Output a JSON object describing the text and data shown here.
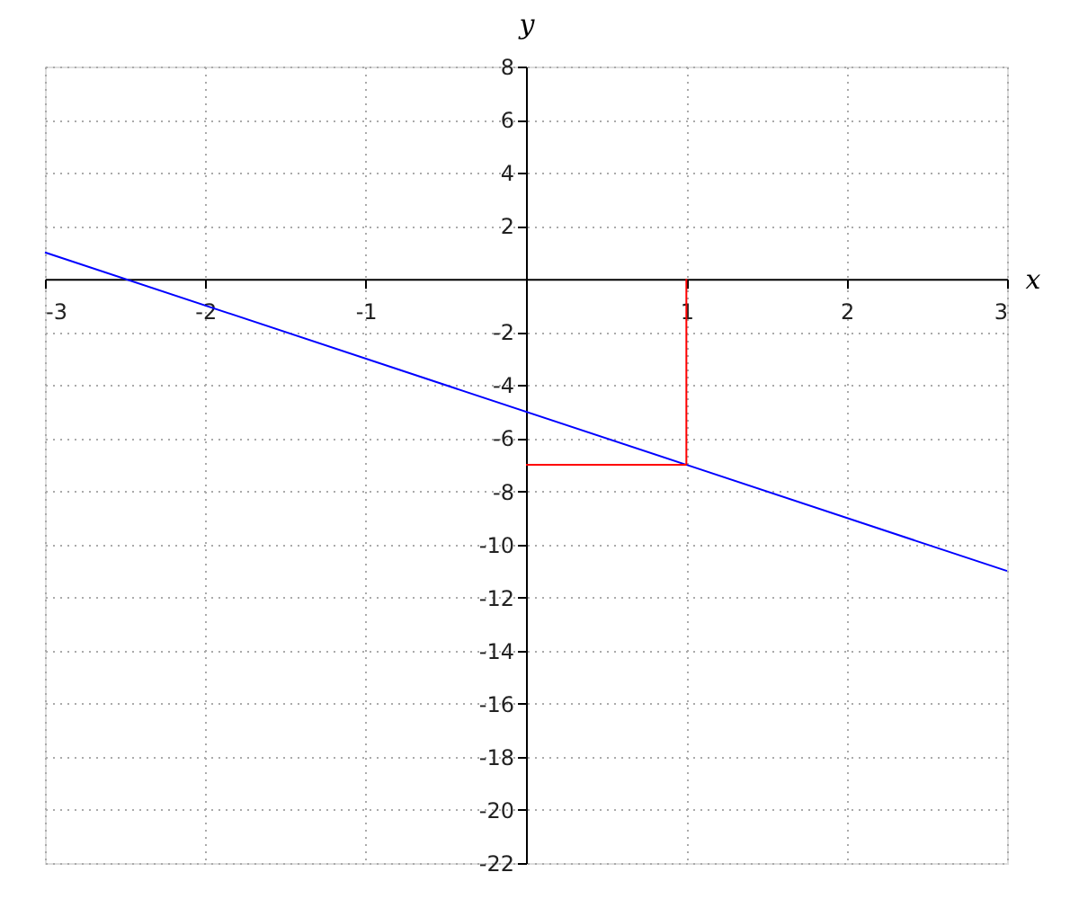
{
  "chart_data": {
    "type": "line",
    "xlabel": "x",
    "ylabel": "y",
    "series": [
      {
        "color": "#0000ff",
        "x": [
          -3,
          3
        ],
        "values": [
          1,
          -11
        ]
      },
      {
        "color": "#ff0000",
        "x": [
          1,
          1
        ],
        "values": [
          0,
          -7
        ]
      },
      {
        "color": "#ff0000",
        "x": [
          0,
          1
        ],
        "values": [
          -7,
          -7
        ]
      }
    ],
    "xlim": [
      -3,
      3
    ],
    "ylim": [
      -22,
      8
    ],
    "xticks": [
      -3,
      -2,
      -1,
      1,
      2,
      3
    ],
    "yticks": [
      -22,
      -20,
      -18,
      -16,
      -14,
      -12,
      -10,
      -8,
      -6,
      -4,
      -2,
      2,
      4,
      6,
      8
    ],
    "grid": true,
    "legend": false,
    "marker": "none",
    "line_style": "solid"
  }
}
